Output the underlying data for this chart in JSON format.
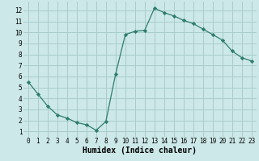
{
  "x": [
    0,
    1,
    2,
    3,
    4,
    5,
    6,
    7,
    8,
    9,
    10,
    11,
    12,
    13,
    14,
    15,
    16,
    17,
    18,
    19,
    20,
    21,
    22,
    23
  ],
  "y": [
    5.5,
    4.4,
    3.3,
    2.5,
    2.2,
    1.8,
    1.6,
    1.1,
    1.9,
    6.2,
    9.8,
    10.1,
    10.2,
    12.2,
    11.8,
    11.5,
    11.1,
    10.8,
    10.3,
    9.8,
    9.3,
    8.3,
    7.7,
    7.4
  ],
  "xlabel": "Humidex (Indice chaleur)",
  "xlim": [
    -0.5,
    23.5
  ],
  "ylim": [
    0.5,
    12.8
  ],
  "yticks": [
    1,
    2,
    3,
    4,
    5,
    6,
    7,
    8,
    9,
    10,
    11,
    12
  ],
  "xticks": [
    0,
    1,
    2,
    3,
    4,
    5,
    6,
    7,
    8,
    9,
    10,
    11,
    12,
    13,
    14,
    15,
    16,
    17,
    18,
    19,
    20,
    21,
    22,
    23
  ],
  "line_color": "#2e7d6e",
  "marker": "D",
  "marker_size": 2.2,
  "bg_color": "#cce8e8",
  "grid_color": "#aacccc",
  "tick_fontsize": 5.5,
  "xlabel_fontsize": 7.0,
  "linewidth": 0.9
}
